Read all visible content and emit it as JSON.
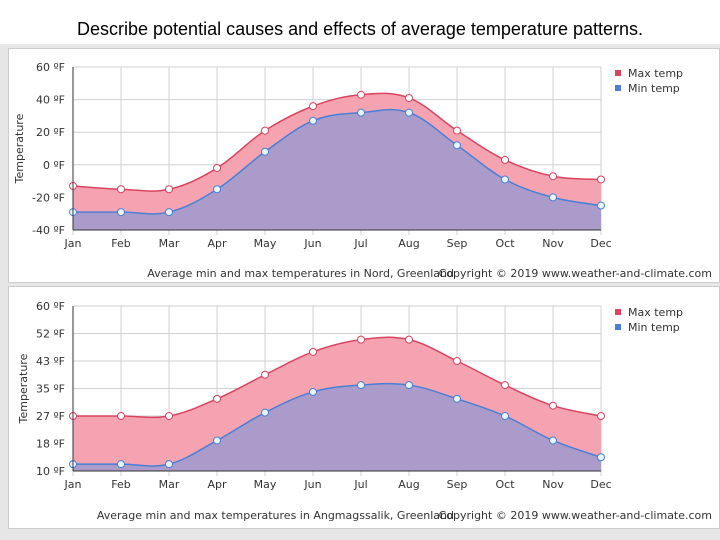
{
  "title": "Describe potential causes and effects of average temperature patterns.",
  "colors": {
    "max": "#d9435f",
    "max_fill": "#f5a3b0",
    "min": "#4a7fd6",
    "min_fill": "#a69bcb"
  },
  "chart_data": [
    {
      "type": "area",
      "categories": [
        "Jan",
        "Feb",
        "Mar",
        "Apr",
        "May",
        "Jun",
        "Jul",
        "Aug",
        "Sep",
        "Oct",
        "Nov",
        "Dec"
      ],
      "ylabel": "Temperature",
      "yticks": [
        "-40 ºF",
        "-20 ºF",
        "0 ºF",
        "20 ºF",
        "40 ºF",
        "60 ºF"
      ],
      "ytick_values": [
        -40,
        -20,
        0,
        20,
        40,
        60
      ],
      "ylim": [
        -40,
        60
      ],
      "grid": true,
      "legend": "top-right",
      "series": [
        {
          "name": "Max temp",
          "values": [
            -13,
            -15,
            -15,
            -2,
            21,
            36,
            43,
            41,
            21,
            3,
            -7,
            -9
          ]
        },
        {
          "name": "Min temp",
          "values": [
            -29,
            -29,
            -29,
            -15,
            8,
            27,
            32,
            32,
            12,
            -9,
            -20,
            -25
          ]
        }
      ],
      "caption": "Average min and max temperatures in Nord, Greenland",
      "copyright": "Copyright © 2019 www.weather-and-climate.com"
    },
    {
      "type": "area",
      "categories": [
        "Jan",
        "Feb",
        "Mar",
        "Apr",
        "May",
        "Jun",
        "Jul",
        "Aug",
        "Sep",
        "Oct",
        "Nov",
        "Dec"
      ],
      "ylabel": "Temperature",
      "yticks": [
        "10 ºF",
        "18 ºF",
        "27 ºF",
        "35 ºF",
        "43 ºF",
        "52 ºF",
        "60 ºF"
      ],
      "ytick_values": [
        10,
        18,
        27,
        35,
        43,
        52,
        60
      ],
      "ylim": [
        10,
        60
      ],
      "grid": true,
      "legend": "top-right",
      "series": [
        {
          "name": "Max temp",
          "values": [
            27,
            27,
            27,
            32,
            39,
            46,
            50,
            50,
            43,
            36,
            30,
            27
          ]
        },
        {
          "name": "Min temp",
          "values": [
            12,
            12,
            12,
            19,
            28,
            34,
            36,
            36,
            32,
            27,
            19,
            14
          ]
        }
      ],
      "caption": "Average min and max temperatures in Angmagssalik, Greenland",
      "copyright": "Copyright © 2019 www.weather-and-climate.com"
    }
  ]
}
